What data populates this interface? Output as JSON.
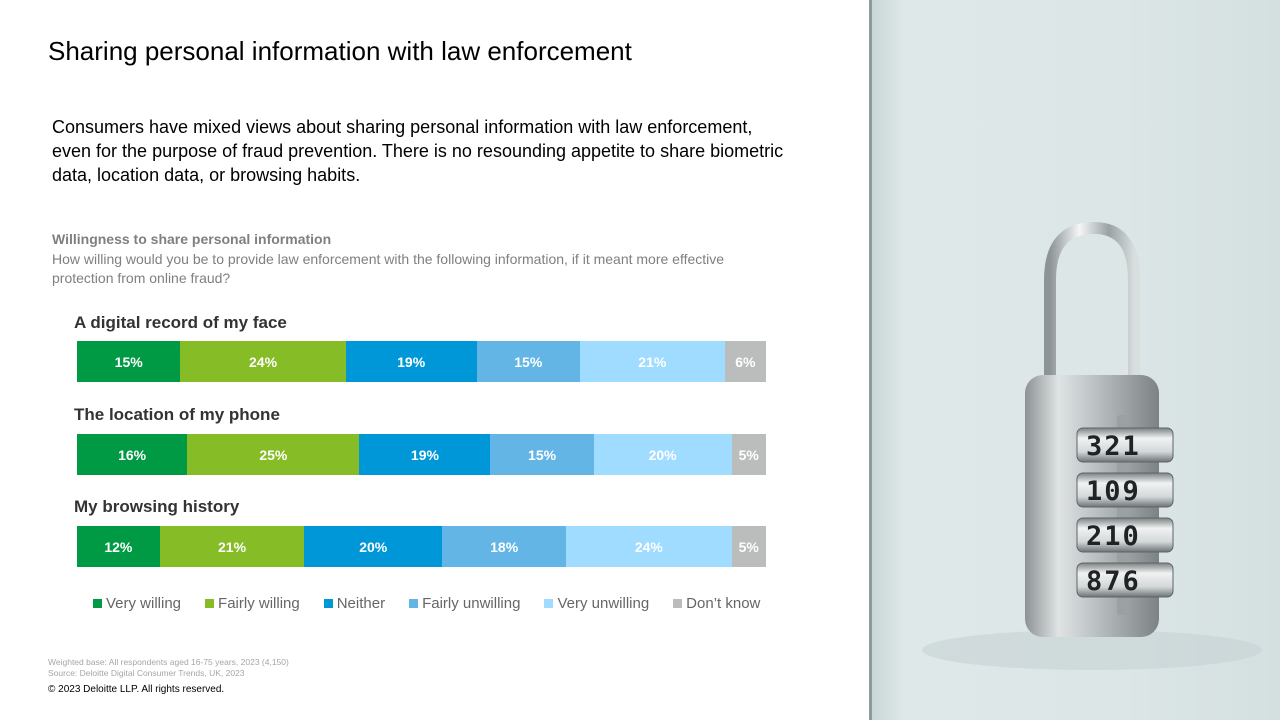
{
  "page": {
    "title": "Sharing personal information with law enforcement",
    "intro": "Consumers have mixed views about sharing personal information with law enforcement, even for the purpose of fraud prevention. There is no resounding appetite to share biometric data, location data, or browsing habits.",
    "footnote_base": "Weighted base: All respondents aged 16-75 years, 2023 (4,150)",
    "footnote_source": "Source: Deloitte Digital Consumer Trends, UK, 2023",
    "copyright": "© 2023 Deloitte LLP. All rights reserved."
  },
  "chart_data": {
    "type": "bar",
    "orientation": "horizontal",
    "stacked": true,
    "title": "Willingness to share personal information",
    "subtitle": "How willing would you be to provide law enforcement with the following information, if it meant more effective protection from online fraud?",
    "categories": [
      "A digital record of my face",
      "The location of my phone",
      "My browsing history"
    ],
    "series": [
      {
        "name": "Very willing",
        "color": "#009a44",
        "values": [
          15,
          16,
          12
        ]
      },
      {
        "name": "Fairly willing",
        "color": "#86bc25",
        "values": [
          24,
          25,
          21
        ]
      },
      {
        "name": "Neither",
        "color": "#0097d8",
        "values": [
          19,
          19,
          20
        ]
      },
      {
        "name": "Fairly unwilling",
        "color": "#62b5e5",
        "values": [
          15,
          15,
          18
        ]
      },
      {
        "name": "Very unwilling",
        "color": "#a0dcff",
        "values": [
          21,
          20,
          24
        ]
      },
      {
        "name": "Don’t know",
        "color": "#bbbcbc",
        "values": [
          6,
          5,
          5
        ]
      }
    ],
    "data_labels": [
      [
        "15%",
        "24%",
        "19%",
        "15%",
        "21%",
        "6%"
      ],
      [
        "16%",
        "25%",
        "19%",
        "15%",
        "20%",
        "5%"
      ],
      [
        "12%",
        "21%",
        "20%",
        "18%",
        "24%",
        "5%"
      ]
    ],
    "legend_position": "bottom",
    "grid": false,
    "xlim": [
      0,
      100
    ]
  },
  "photo": {
    "icon": "combination-padlock",
    "dials": [
      "321",
      "109",
      "210",
      "876"
    ]
  }
}
